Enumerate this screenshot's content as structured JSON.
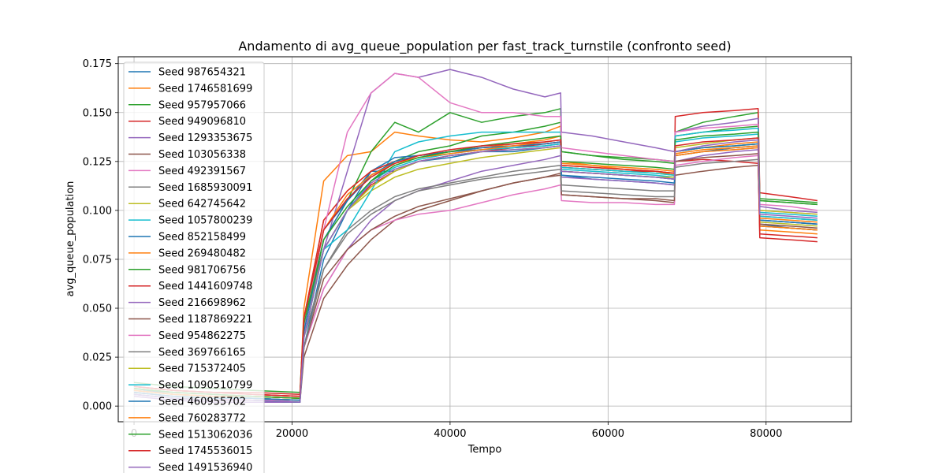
{
  "chart_data": {
    "type": "line",
    "title": "Andamento di avg_queue_population per fast_track_turnstile (confronto seed)",
    "xlabel": "Tempo",
    "ylabel": "avg_queue_population",
    "xlim": [
      -2000,
      90800
    ],
    "ylim": [
      -0.008,
      0.1785
    ],
    "x_ticks": [
      0,
      20000,
      40000,
      60000,
      80000
    ],
    "x_tick_labels": [
      "0",
      "20000",
      "40000",
      "60000",
      "80000"
    ],
    "y_ticks": [
      0.0,
      0.025,
      0.05,
      0.075,
      0.1,
      0.125,
      0.15,
      0.175
    ],
    "y_tick_labels": [
      "0.000",
      "0.025",
      "0.050",
      "0.075",
      "0.100",
      "0.125",
      "0.150",
      "0.175"
    ],
    "grid": true,
    "legend_position": "top-left",
    "x": [
      0,
      5000,
      10000,
      15000,
      21000,
      21500,
      24000,
      27000,
      30000,
      33000,
      36000,
      40000,
      44000,
      48000,
      52000,
      54000,
      54100,
      58000,
      62000,
      66000,
      68400,
      68500,
      72000,
      76000,
      79000,
      79200,
      83000,
      86500
    ],
    "series": [
      {
        "name": "Seed 987654321",
        "color": "#1f77b4",
        "values": [
          0.009,
          0.006,
          0.005,
          0.004,
          0.003,
          0.03,
          0.075,
          0.1,
          0.12,
          0.12,
          0.125,
          0.127,
          0.13,
          0.13,
          0.132,
          0.133,
          0.118,
          0.116,
          0.115,
          0.114,
          0.113,
          0.128,
          0.13,
          0.132,
          0.133,
          0.093,
          0.091,
          0.09
        ]
      },
      {
        "name": "Seed 1746581699",
        "color": "#ff7f0e",
        "values": [
          0.01,
          0.008,
          0.007,
          0.006,
          0.005,
          0.05,
          0.115,
          0.128,
          0.13,
          0.14,
          0.138,
          0.136,
          0.135,
          0.137,
          0.14,
          0.143,
          0.125,
          0.123,
          0.121,
          0.12,
          0.118,
          0.13,
          0.132,
          0.134,
          0.135,
          0.096,
          0.095,
          0.094
        ]
      },
      {
        "name": "Seed 957957066",
        "color": "#2ca02c",
        "values": [
          0.012,
          0.01,
          0.009,
          0.008,
          0.007,
          0.045,
          0.08,
          0.1,
          0.115,
          0.125,
          0.13,
          0.133,
          0.138,
          0.14,
          0.143,
          0.145,
          0.13,
          0.128,
          0.127,
          0.126,
          0.125,
          0.138,
          0.14,
          0.142,
          0.143,
          0.105,
          0.104,
          0.103
        ]
      },
      {
        "name": "Seed 949096810",
        "color": "#d62728",
        "values": [
          0.01,
          0.008,
          0.007,
          0.007,
          0.006,
          0.04,
          0.08,
          0.1,
          0.113,
          0.12,
          0.125,
          0.128,
          0.13,
          0.132,
          0.134,
          0.135,
          0.12,
          0.119,
          0.118,
          0.117,
          0.116,
          0.125,
          0.126,
          0.125,
          0.124,
          0.086,
          0.085,
          0.084
        ]
      },
      {
        "name": "Seed 1293353675",
        "color": "#9467bd",
        "values": [
          0.008,
          0.006,
          0.005,
          0.004,
          0.003,
          0.03,
          0.06,
          0.08,
          0.095,
          0.105,
          0.11,
          0.115,
          0.12,
          0.123,
          0.126,
          0.128,
          0.117,
          0.116,
          0.115,
          0.114,
          0.113,
          0.125,
          0.128,
          0.13,
          0.131,
          0.095,
          0.094,
          0.093
        ]
      },
      {
        "name": "Seed 103056338",
        "color": "#8c564b",
        "values": [
          0.006,
          0.004,
          0.003,
          0.003,
          0.002,
          0.025,
          0.055,
          0.072,
          0.085,
          0.095,
          0.1,
          0.105,
          0.11,
          0.114,
          0.117,
          0.119,
          0.108,
          0.107,
          0.106,
          0.105,
          0.104,
          0.118,
          0.12,
          0.122,
          0.123,
          0.092,
          0.091,
          0.09
        ]
      },
      {
        "name": "Seed 492391567",
        "color": "#e377c2",
        "values": [
          0.007,
          0.005,
          0.004,
          0.003,
          0.002,
          0.03,
          0.06,
          0.08,
          0.09,
          0.095,
          0.098,
          0.1,
          0.104,
          0.108,
          0.111,
          0.113,
          0.105,
          0.104,
          0.104,
          0.103,
          0.103,
          0.123,
          0.125,
          0.127,
          0.128,
          0.1,
          0.099,
          0.098
        ]
      },
      {
        "name": "Seed 1685930091",
        "color": "#7f7f7f",
        "values": [
          0.008,
          0.006,
          0.005,
          0.004,
          0.003,
          0.035,
          0.07,
          0.09,
          0.1,
          0.107,
          0.111,
          0.114,
          0.117,
          0.12,
          0.122,
          0.123,
          0.113,
          0.112,
          0.111,
          0.11,
          0.11,
          0.128,
          0.13,
          0.131,
          0.132,
          0.097,
          0.096,
          0.095
        ]
      },
      {
        "name": "Seed 642745642",
        "color": "#bcbd22",
        "values": [
          0.009,
          0.007,
          0.006,
          0.005,
          0.004,
          0.04,
          0.08,
          0.1,
          0.11,
          0.117,
          0.121,
          0.124,
          0.127,
          0.129,
          0.131,
          0.132,
          0.122,
          0.121,
          0.12,
          0.119,
          0.118,
          0.132,
          0.134,
          0.136,
          0.137,
          0.1,
          0.099,
          0.098
        ]
      },
      {
        "name": "Seed 1057800239",
        "color": "#17becf",
        "values": [
          0.008,
          0.006,
          0.005,
          0.004,
          0.003,
          0.035,
          0.08,
          0.09,
          0.11,
          0.13,
          0.135,
          0.138,
          0.14,
          0.14,
          0.14,
          0.14,
          0.121,
          0.12,
          0.119,
          0.118,
          0.117,
          0.135,
          0.137,
          0.138,
          0.139,
          0.097,
          0.096,
          0.095
        ]
      },
      {
        "name": "Seed 852158499",
        "color": "#1f77b4",
        "values": [
          0.007,
          0.005,
          0.004,
          0.004,
          0.003,
          0.04,
          0.09,
          0.105,
          0.12,
          0.127,
          0.128,
          0.13,
          0.131,
          0.132,
          0.133,
          0.134,
          0.12,
          0.119,
          0.118,
          0.117,
          0.116,
          0.13,
          0.132,
          0.133,
          0.134,
          0.095,
          0.094,
          0.093
        ]
      },
      {
        "name": "Seed 269480482",
        "color": "#ff7f0e",
        "values": [
          0.008,
          0.006,
          0.005,
          0.005,
          0.004,
          0.045,
          0.095,
          0.11,
          0.12,
          0.125,
          0.128,
          0.13,
          0.132,
          0.134,
          0.136,
          0.138,
          0.124,
          0.123,
          0.122,
          0.121,
          0.12,
          0.128,
          0.13,
          0.131,
          0.132,
          0.09,
          0.089,
          0.088
        ]
      },
      {
        "name": "Seed 981706756",
        "color": "#2ca02c",
        "values": [
          0.009,
          0.007,
          0.006,
          0.005,
          0.004,
          0.04,
          0.085,
          0.105,
          0.13,
          0.145,
          0.14,
          0.15,
          0.145,
          0.148,
          0.15,
          0.152,
          0.13,
          0.128,
          0.126,
          0.125,
          0.124,
          0.14,
          0.145,
          0.148,
          0.15,
          0.106,
          0.105,
          0.104
        ]
      },
      {
        "name": "Seed 1441609748",
        "color": "#d62728",
        "values": [
          0.01,
          0.008,
          0.007,
          0.006,
          0.005,
          0.045,
          0.095,
          0.11,
          0.12,
          0.125,
          0.128,
          0.13,
          0.132,
          0.133,
          0.134,
          0.135,
          0.122,
          0.121,
          0.12,
          0.12,
          0.119,
          0.148,
          0.15,
          0.151,
          0.152,
          0.109,
          0.107,
          0.105
        ]
      },
      {
        "name": "Seed 216698962",
        "color": "#9467bd",
        "values": [
          0.005,
          0.003,
          0.002,
          0.002,
          0.002,
          0.035,
          0.08,
          0.12,
          0.16,
          0.17,
          0.168,
          0.172,
          0.168,
          0.162,
          0.158,
          0.16,
          0.14,
          0.138,
          0.135,
          0.132,
          0.13,
          0.14,
          0.143,
          0.145,
          0.147,
          0.102,
          0.1,
          0.099
        ]
      },
      {
        "name": "Seed 1187869221",
        "color": "#8c564b",
        "values": [
          0.006,
          0.004,
          0.003,
          0.003,
          0.002,
          0.03,
          0.065,
          0.08,
          0.09,
          0.097,
          0.102,
          0.106,
          0.11,
          0.114,
          0.117,
          0.118,
          0.108,
          0.107,
          0.106,
          0.106,
          0.105,
          0.125,
          0.127,
          0.128,
          0.129,
          0.093,
          0.092,
          0.091
        ]
      },
      {
        "name": "Seed 954862275",
        "color": "#e377c2",
        "values": [
          0.007,
          0.005,
          0.004,
          0.003,
          0.003,
          0.04,
          0.09,
          0.14,
          0.16,
          0.17,
          0.168,
          0.155,
          0.15,
          0.15,
          0.148,
          0.148,
          0.132,
          0.13,
          0.128,
          0.126,
          0.125,
          0.14,
          0.142,
          0.143,
          0.144,
          0.103,
          0.102,
          0.1
        ]
      },
      {
        "name": "Seed 369766165",
        "color": "#7f7f7f",
        "values": [
          0.006,
          0.004,
          0.003,
          0.003,
          0.002,
          0.03,
          0.07,
          0.088,
          0.098,
          0.105,
          0.11,
          0.113,
          0.116,
          0.118,
          0.12,
          0.121,
          0.11,
          0.109,
          0.108,
          0.107,
          0.107,
          0.122,
          0.124,
          0.125,
          0.126,
          0.092,
          0.091,
          0.09
        ]
      },
      {
        "name": "Seed 715372405",
        "color": "#bcbd22",
        "values": [
          0.007,
          0.005,
          0.004,
          0.004,
          0.003,
          0.035,
          0.08,
          0.1,
          0.112,
          0.12,
          0.125,
          0.128,
          0.13,
          0.131,
          0.132,
          0.133,
          0.12,
          0.119,
          0.118,
          0.117,
          0.117,
          0.13,
          0.132,
          0.133,
          0.134,
          0.094,
          0.093,
          0.092
        ]
      },
      {
        "name": "Seed 1090510799",
        "color": "#17becf",
        "values": [
          0.006,
          0.004,
          0.003,
          0.003,
          0.002,
          0.035,
          0.08,
          0.1,
          0.115,
          0.122,
          0.126,
          0.129,
          0.131,
          0.132,
          0.133,
          0.134,
          0.122,
          0.121,
          0.12,
          0.119,
          0.118,
          0.138,
          0.14,
          0.141,
          0.142,
          0.099,
          0.098,
          0.097
        ]
      },
      {
        "name": "Seed 460955702",
        "color": "#1f77b4",
        "values": [
          0.007,
          0.005,
          0.004,
          0.004,
          0.003,
          0.038,
          0.085,
          0.105,
          0.118,
          0.125,
          0.128,
          0.13,
          0.132,
          0.133,
          0.134,
          0.135,
          0.118,
          0.117,
          0.116,
          0.115,
          0.114,
          0.13,
          0.132,
          0.133,
          0.134,
          0.095,
          0.094,
          0.093
        ]
      },
      {
        "name": "Seed 760283772",
        "color": "#ff7f0e",
        "values": [
          0.008,
          0.006,
          0.005,
          0.005,
          0.004,
          0.045,
          0.09,
          0.108,
          0.118,
          0.124,
          0.127,
          0.129,
          0.131,
          0.133,
          0.135,
          0.136,
          0.123,
          0.122,
          0.121,
          0.12,
          0.119,
          0.129,
          0.131,
          0.132,
          0.133,
          0.092,
          0.091,
          0.09
        ]
      },
      {
        "name": "Seed 1513062036",
        "color": "#2ca02c",
        "values": [
          0.009,
          0.007,
          0.006,
          0.005,
          0.004,
          0.042,
          0.085,
          0.102,
          0.115,
          0.123,
          0.127,
          0.13,
          0.133,
          0.135,
          0.137,
          0.138,
          0.125,
          0.124,
          0.123,
          0.122,
          0.121,
          0.136,
          0.138,
          0.139,
          0.14,
          0.105,
          0.104,
          0.103
        ]
      },
      {
        "name": "Seed 1745536015",
        "color": "#d62728",
        "values": [
          0.01,
          0.008,
          0.007,
          0.006,
          0.005,
          0.045,
          0.09,
          0.106,
          0.117,
          0.124,
          0.128,
          0.131,
          0.133,
          0.134,
          0.135,
          0.136,
          0.123,
          0.122,
          0.121,
          0.12,
          0.119,
          0.133,
          0.135,
          0.136,
          0.137,
          0.088,
          0.087,
          0.086
        ]
      },
      {
        "name": "Seed 1491536940",
        "color": "#9467bd",
        "values": [
          0.006,
          0.004,
          0.003,
          0.003,
          0.002,
          0.035,
          0.08,
          0.1,
          0.114,
          0.121,
          0.125,
          0.128,
          0.13,
          0.131,
          0.132,
          0.133,
          0.12,
          0.119,
          0.118,
          0.117,
          0.116,
          0.13,
          0.133,
          0.135,
          0.136,
          0.098,
          0.097,
          0.096
        ]
      }
    ]
  }
}
